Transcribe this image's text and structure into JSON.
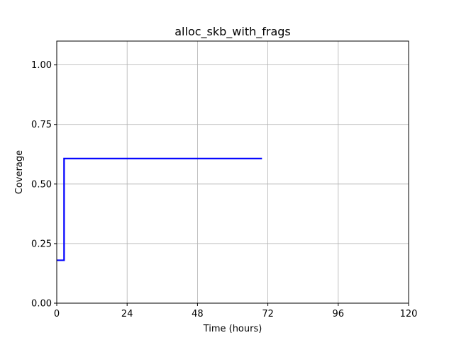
{
  "chart_data": {
    "type": "line",
    "title": "alloc_skb_with_frags",
    "xlabel": "Time (hours)",
    "ylabel": "Coverage",
    "xlim": [
      0,
      120
    ],
    "ylim": [
      0,
      1.1
    ],
    "xticks": [
      0,
      24,
      48,
      72,
      96,
      120
    ],
    "yticks": [
      0.0,
      0.25,
      0.5,
      0.75,
      1.0
    ],
    "xtick_labels": [
      "0",
      "24",
      "48",
      "72",
      "96",
      "120"
    ],
    "ytick_labels": [
      "0.00",
      "0.25",
      "0.50",
      "0.75",
      "1.00"
    ],
    "grid": true,
    "series": [
      {
        "color": "#0000ff",
        "step": true,
        "x": [
          0,
          2.5,
          2.5,
          70
        ],
        "y": [
          0.18,
          0.18,
          0.607,
          0.607
        ]
      }
    ]
  }
}
